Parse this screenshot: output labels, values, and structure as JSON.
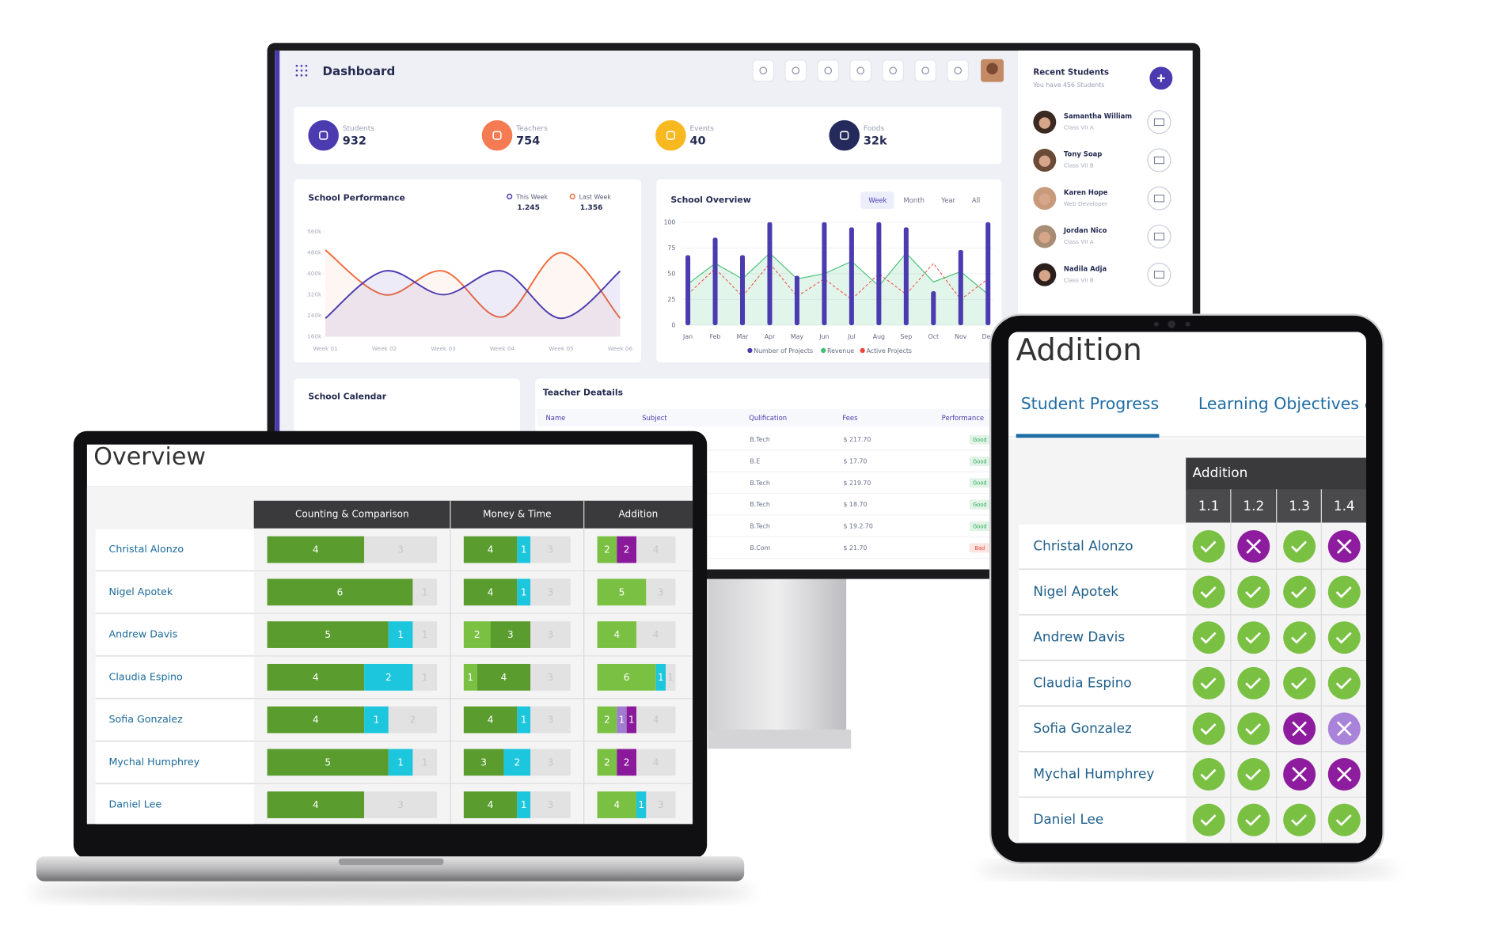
{
  "dashboard": {
    "title": "Dashboard",
    "stats": [
      {
        "label": "Students",
        "value": 932,
        "color": "#4b3bb0"
      },
      {
        "label": "Teachers",
        "value": 754,
        "color": "#f47b52"
      },
      {
        "label": "Events",
        "value": 40,
        "color": "#f8b81f"
      },
      {
        "label": "Foods",
        "value": "32k",
        "color": "#252a5c"
      }
    ],
    "school_performance": {
      "title": "School Performance",
      "categories": [
        "Week 01",
        "Week 02",
        "Week 03",
        "Week 04",
        "Week 05",
        "Week 06"
      ],
      "ylim": [
        160,
        560
      ],
      "yticks": [
        {
          "value": 160,
          "label": "160k"
        },
        {
          "value": 240,
          "label": "240k"
        },
        {
          "value": 320,
          "label": "320k"
        },
        {
          "value": 400,
          "label": "400k"
        },
        {
          "value": 480,
          "label": "480k"
        },
        {
          "value": 560,
          "label": "560k"
        }
      ],
      "series": [
        {
          "name": "This Week",
          "total": "1.245",
          "color": "#4b3bb0",
          "values": [
            230,
            410,
            320,
            410,
            230,
            410
          ]
        },
        {
          "name": "Last Week",
          "total": "1.356",
          "color": "#f26b3a",
          "values": [
            490,
            320,
            410,
            235,
            480,
            230
          ]
        }
      ]
    },
    "school_overview": {
      "title": "School Overview",
      "tabs": [
        "Week",
        "Month",
        "Year",
        "All"
      ],
      "categories": [
        "Jan",
        "Feb",
        "Mar",
        "Apr",
        "May",
        "Jun",
        "Jul",
        "Aug",
        "Sep",
        "Oct",
        "Nov",
        "Dec"
      ],
      "ylim": [
        0,
        100
      ],
      "yticks": [
        0,
        25,
        50,
        75,
        100
      ],
      "series": [
        {
          "name": "Number of Projects",
          "type": "bar",
          "color": "#4b3bb0",
          "values": [
            68,
            85,
            68,
            100,
            48,
            100,
            95,
            100,
            95,
            33,
            73,
            100
          ]
        },
        {
          "name": "Revenue",
          "type": "area",
          "color": "#3fbf6f",
          "values": [
            40,
            60,
            45,
            70,
            45,
            50,
            62,
            38,
            70,
            42,
            52,
            30
          ]
        },
        {
          "name": "Active Projects",
          "type": "line",
          "color": "#f0443a",
          "values": [
            30,
            55,
            28,
            60,
            28,
            45,
            25,
            50,
            30,
            60,
            25,
            45
          ]
        }
      ]
    },
    "school_calendar": {
      "title": "School Calendar"
    },
    "teacher_details": {
      "title": "Teacher Deatails",
      "columns": [
        "Name",
        "Subject",
        "Qulification",
        "Fees",
        "Performance"
      ],
      "rows": [
        {
          "qualification": "B.Tech",
          "fee": "$ 217.70",
          "performance": "Good",
          "color": "#2fae5a"
        },
        {
          "qualification": "B.E",
          "fee": "$ 17.70",
          "performance": "Good",
          "color": "#2fae5a"
        },
        {
          "qualification": "B.Tech",
          "fee": "$ 219.70",
          "performance": "Good",
          "color": "#2fae5a"
        },
        {
          "qualification": "B.Tech",
          "fee": "$ 18.70",
          "performance": "Good",
          "color": "#2fae5a"
        },
        {
          "qualification": "B.Tech",
          "fee": "$ 19.2.70",
          "performance": "Good",
          "color": "#2fae5a"
        },
        {
          "qualification": "B.Com",
          "fee": "$ 21.70",
          "performance": "Bad",
          "color": "#e8473c"
        }
      ]
    },
    "recent_students": {
      "title": "Recent Students",
      "subtitle": "You have 456 Students",
      "students": [
        {
          "name": "Samantha William",
          "role": "Class VII A"
        },
        {
          "name": "Tony Soap",
          "role": "Class VII B"
        },
        {
          "name": "Karen Hope",
          "role": "Web Developer"
        },
        {
          "name": "Jordan Nico",
          "role": "Class VII A"
        },
        {
          "name": "Nadila Adja",
          "role": "Class VII B"
        }
      ]
    }
  },
  "laptop": {
    "title": "Overview",
    "groups": [
      "Counting & Comparison",
      "Money & Time",
      "Addition"
    ],
    "rows": [
      {
        "name": "Christal Alonzo",
        "bars": [
          [
            {
              "value": 4,
              "color": "#5a9c2e"
            },
            {
              "value": 3,
              "color": "#e2e2e2"
            }
          ],
          [
            {
              "value": 4,
              "color": "#5a9c2e"
            },
            {
              "value": 1,
              "color": "#1cc6dc"
            },
            {
              "value": 3,
              "color": "#e2e2e2"
            }
          ],
          [
            {
              "value": 2,
              "color": "#7ac143"
            },
            {
              "value": 2,
              "color": "#8a1a9b"
            },
            {
              "value": 4,
              "color": "#e2e2e2"
            }
          ]
        ]
      },
      {
        "name": "Nigel Apotek",
        "bars": [
          [
            {
              "value": 6,
              "color": "#5a9c2e"
            },
            {
              "value": 1,
              "color": "#e2e2e2"
            }
          ],
          [
            {
              "value": 4,
              "color": "#5a9c2e"
            },
            {
              "value": 1,
              "color": "#1cc6dc"
            },
            {
              "value": 3,
              "color": "#e2e2e2"
            }
          ],
          [
            {
              "value": 5,
              "color": "#7ac143"
            },
            {
              "value": 3,
              "color": "#e2e2e2"
            }
          ]
        ]
      },
      {
        "name": "Andrew Davis",
        "bars": [
          [
            {
              "value": 5,
              "color": "#5a9c2e"
            },
            {
              "value": 1,
              "color": "#1cc6dc"
            },
            {
              "value": 1,
              "color": "#e2e2e2"
            }
          ],
          [
            {
              "value": 2,
              "color": "#7ac143"
            },
            {
              "value": 3,
              "color": "#5a9c2e"
            },
            {
              "value": 3,
              "color": "#e2e2e2"
            }
          ],
          [
            {
              "value": 4,
              "color": "#7ac143"
            },
            {
              "value": 4,
              "color": "#e2e2e2"
            }
          ]
        ]
      },
      {
        "name": "Claudia Espino",
        "bars": [
          [
            {
              "value": 4,
              "color": "#5a9c2e"
            },
            {
              "value": 2,
              "color": "#1cc6dc"
            },
            {
              "value": 1,
              "color": "#e2e2e2"
            }
          ],
          [
            {
              "value": 1,
              "color": "#7ac143"
            },
            {
              "value": 4,
              "color": "#5a9c2e"
            },
            {
              "value": 3,
              "color": "#e2e2e2"
            }
          ],
          [
            {
              "value": 6,
              "color": "#7ac143"
            },
            {
              "value": 1,
              "color": "#1cc6dc"
            },
            {
              "value": 1,
              "color": "#e2e2e2"
            }
          ]
        ]
      },
      {
        "name": "Sofia Gonzalez",
        "bars": [
          [
            {
              "value": 4,
              "color": "#5a9c2e"
            },
            {
              "value": 1,
              "color": "#1cc6dc"
            },
            {
              "value": 2,
              "color": "#e2e2e2"
            }
          ],
          [
            {
              "value": 4,
              "color": "#5a9c2e"
            },
            {
              "value": 1,
              "color": "#1cc6dc"
            },
            {
              "value": 3,
              "color": "#e2e2e2"
            }
          ],
          [
            {
              "value": 2,
              "color": "#7ac143"
            },
            {
              "value": 1,
              "color": "#a07cd0"
            },
            {
              "value": 1,
              "color": "#8a1a9b"
            },
            {
              "value": 4,
              "color": "#e2e2e2"
            }
          ]
        ]
      },
      {
        "name": "Mychal Humphrey",
        "bars": [
          [
            {
              "value": 5,
              "color": "#5a9c2e"
            },
            {
              "value": 1,
              "color": "#1cc6dc"
            },
            {
              "value": 1,
              "color": "#e2e2e2"
            }
          ],
          [
            {
              "value": 3,
              "color": "#5a9c2e"
            },
            {
              "value": 2,
              "color": "#1cc6dc"
            },
            {
              "value": 3,
              "color": "#e2e2e2"
            }
          ],
          [
            {
              "value": 2,
              "color": "#7ac143"
            },
            {
              "value": 2,
              "color": "#8a1a9b"
            },
            {
              "value": 4,
              "color": "#e2e2e2"
            }
          ]
        ]
      },
      {
        "name": "Daniel Lee",
        "bars": [
          [
            {
              "value": 4,
              "color": "#5a9c2e"
            },
            {
              "value": 3,
              "color": "#e2e2e2"
            }
          ],
          [
            {
              "value": 4,
              "color": "#5a9c2e"
            },
            {
              "value": 1,
              "color": "#1cc6dc"
            },
            {
              "value": 3,
              "color": "#e2e2e2"
            }
          ],
          [
            {
              "value": 4,
              "color": "#7ac143"
            },
            {
              "value": 1,
              "color": "#1cc6dc"
            },
            {
              "value": 3,
              "color": "#e2e2e2"
            }
          ]
        ]
      }
    ]
  },
  "tablet": {
    "title": "Addition",
    "tabs": [
      "Student Progress",
      "Learning Objectives &"
    ],
    "group": "Addition",
    "columns": [
      "1.1",
      "1.2",
      "1.3",
      "1.4"
    ],
    "rows": [
      {
        "name": "Christal Alonzo",
        "results": [
          {
            "ok": true,
            "color": "#7ac143"
          },
          {
            "ok": false,
            "color": "#8e1c9e"
          },
          {
            "ok": true,
            "color": "#7ac143"
          },
          {
            "ok": false,
            "color": "#8e1c9e"
          }
        ]
      },
      {
        "name": "Nigel Apotek",
        "results": [
          {
            "ok": true,
            "color": "#7ac143"
          },
          {
            "ok": true,
            "color": "#7ac143"
          },
          {
            "ok": true,
            "color": "#7ac143"
          },
          {
            "ok": true,
            "color": "#7ac143"
          }
        ]
      },
      {
        "name": "Andrew Davis",
        "results": [
          {
            "ok": true,
            "color": "#7ac143"
          },
          {
            "ok": true,
            "color": "#7ac143"
          },
          {
            "ok": true,
            "color": "#7ac143"
          },
          {
            "ok": true,
            "color": "#7ac143"
          }
        ]
      },
      {
        "name": "Claudia Espino",
        "results": [
          {
            "ok": true,
            "color": "#7ac143"
          },
          {
            "ok": true,
            "color": "#7ac143"
          },
          {
            "ok": true,
            "color": "#7ac143"
          },
          {
            "ok": true,
            "color": "#7ac143"
          }
        ]
      },
      {
        "name": "Sofia Gonzalez",
        "results": [
          {
            "ok": true,
            "color": "#7ac143"
          },
          {
            "ok": true,
            "color": "#7ac143"
          },
          {
            "ok": false,
            "color": "#8e1c9e"
          },
          {
            "ok": false,
            "color": "#a982d9"
          }
        ]
      },
      {
        "name": "Mychal Humphrey",
        "results": [
          {
            "ok": true,
            "color": "#7ac143"
          },
          {
            "ok": true,
            "color": "#7ac143"
          },
          {
            "ok": false,
            "color": "#8e1c9e"
          },
          {
            "ok": false,
            "color": "#8e1c9e"
          }
        ]
      },
      {
        "name": "Daniel Lee",
        "results": [
          {
            "ok": true,
            "color": "#7ac143"
          },
          {
            "ok": true,
            "color": "#7ac143"
          },
          {
            "ok": true,
            "color": "#7ac143"
          },
          {
            "ok": true,
            "color": "#7ac143"
          }
        ]
      }
    ]
  }
}
